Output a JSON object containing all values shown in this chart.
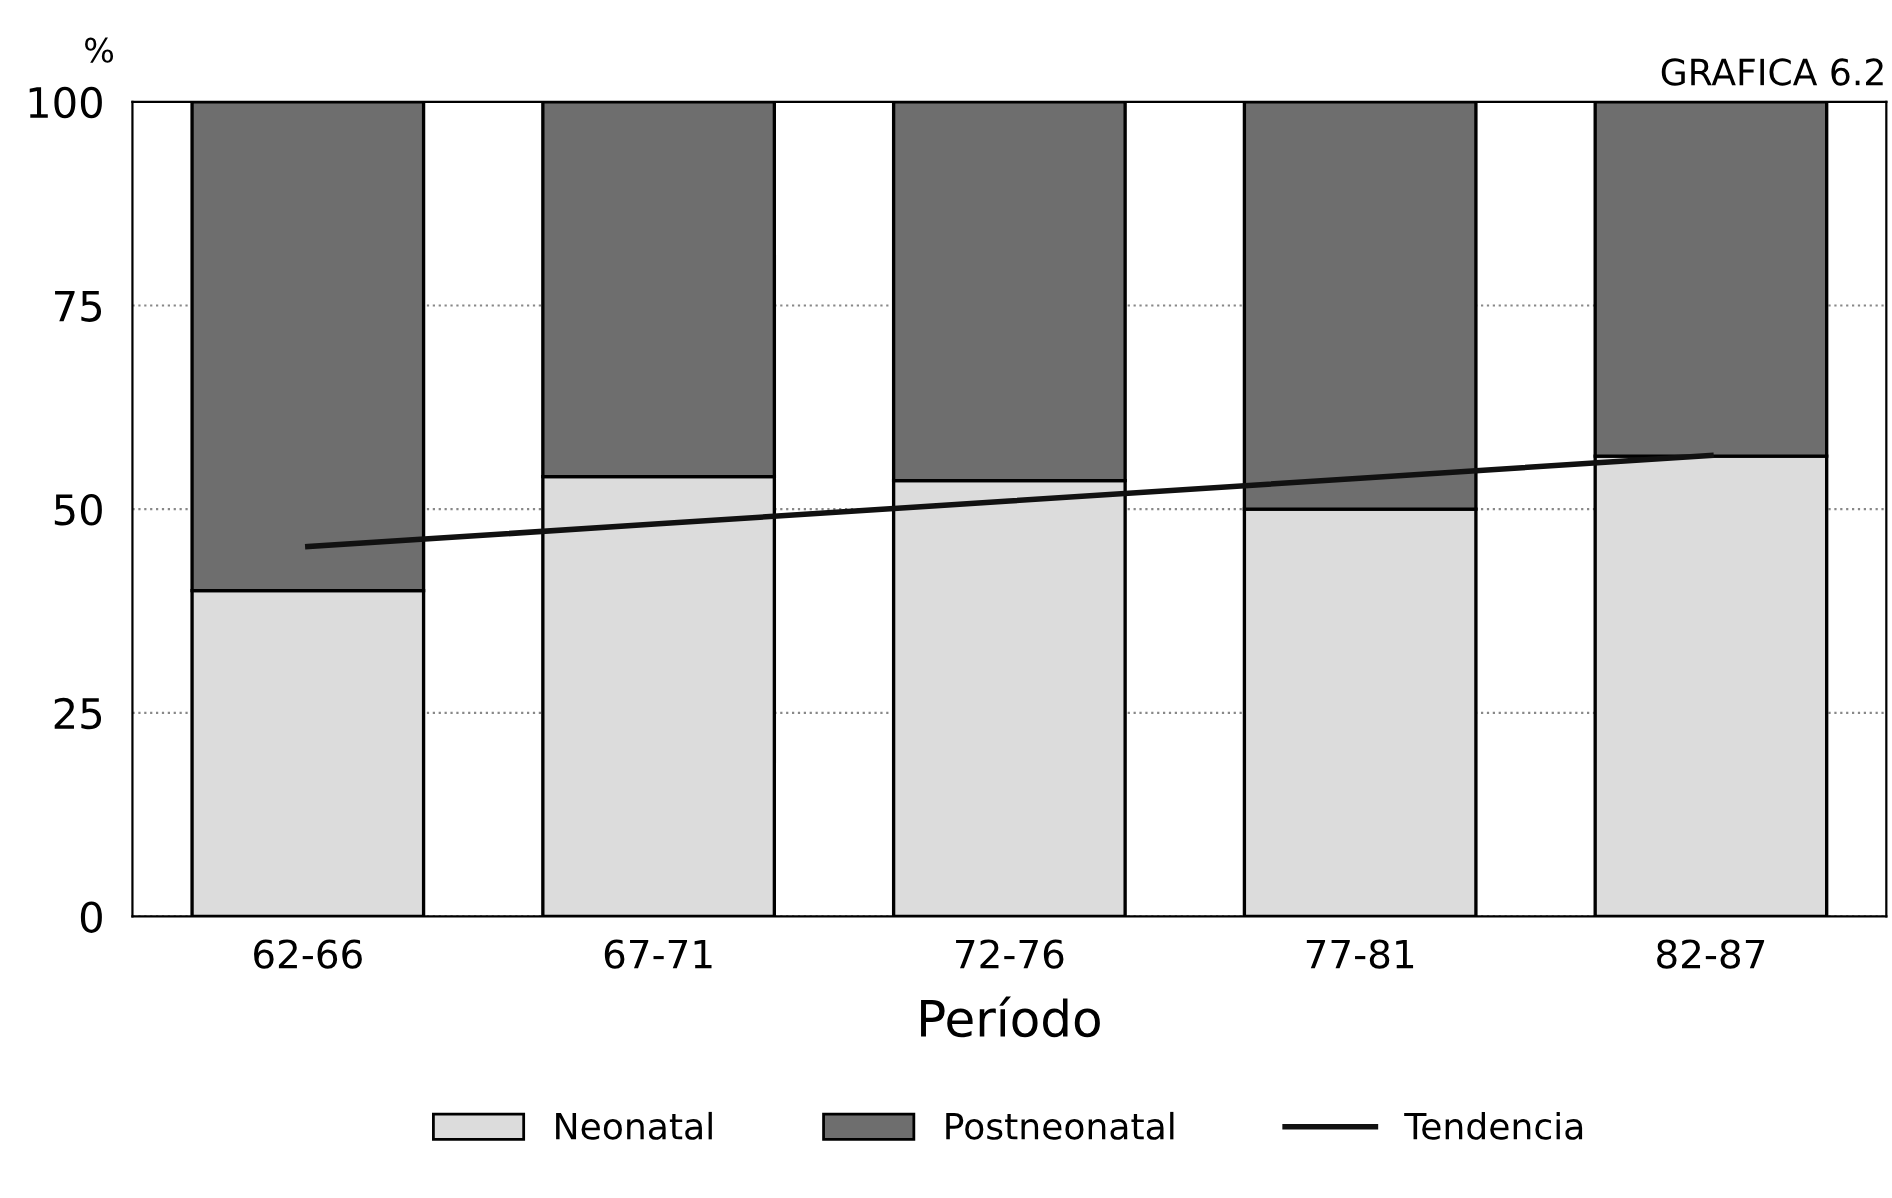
{
  "chart_data": {
    "type": "bar",
    "title": "GRAFICA 6.2",
    "xlabel": "Período",
    "ylabel": "%",
    "categories": [
      "62-66",
      "67-71",
      "72-76",
      "77-81",
      "82-87"
    ],
    "stacked": true,
    "series": [
      {
        "name": "Neonatal",
        "color": "#dcdcdc",
        "values": [
          40,
          54,
          53.5,
          50,
          56.5
        ]
      },
      {
        "name": "Postneonatal",
        "color": "#6e6e6e",
        "values": [
          60,
          46,
          46.5,
          50,
          43.5
        ]
      },
      {
        "name": "Tendencia",
        "type": "line",
        "color": "#111111",
        "values": [
          45.4,
          48.2,
          51,
          53.8,
          56.6
        ]
      }
    ],
    "ylim": [
      0,
      100
    ],
    "yticks": [
      0,
      25,
      50,
      75,
      100
    ],
    "grid": "y",
    "legend": "bottom",
    "line_style": "solid"
  }
}
